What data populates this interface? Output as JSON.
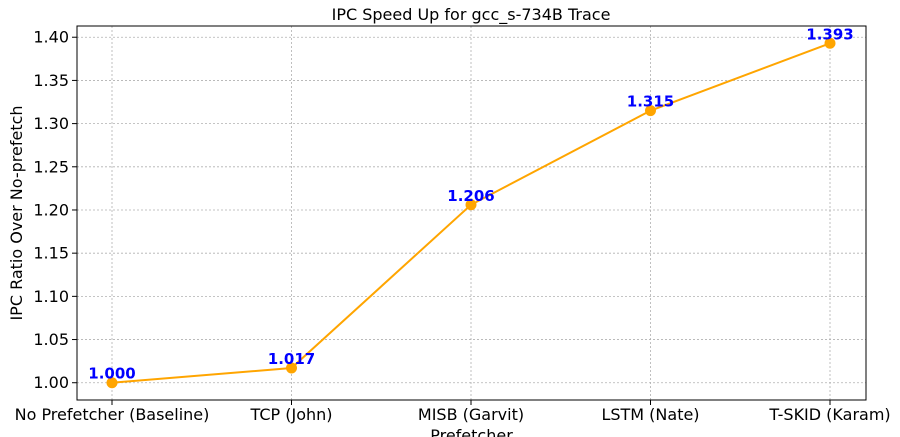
{
  "chart_data": {
    "type": "line",
    "title": "IPC Speed Up for gcc_s-734B Trace",
    "xlabel": "Prefetcher",
    "ylabel": "IPC Ratio Over No-prefetch",
    "categories": [
      "No Prefetcher (Baseline)",
      "TCP (John)",
      "MISB (Garvit)",
      "LSTM (Nate)",
      "T-SKID (Karam)"
    ],
    "values": [
      1.0,
      1.017,
      1.206,
      1.315,
      1.393
    ],
    "data_labels": [
      "1.000",
      "1.017",
      "1.206",
      "1.315",
      "1.393"
    ],
    "ylim": [
      0.98,
      1.413
    ],
    "yticks": [
      1.0,
      1.05,
      1.1,
      1.15,
      1.2,
      1.25,
      1.3,
      1.35,
      1.4
    ],
    "ytick_labels": [
      "1.00",
      "1.05",
      "1.10",
      "1.15",
      "1.20",
      "1.25",
      "1.30",
      "1.35",
      "1.40"
    ],
    "grid": true,
    "line_color": "#FFA500",
    "marker_color": "#FFA500",
    "label_color": "#0000FF"
  }
}
